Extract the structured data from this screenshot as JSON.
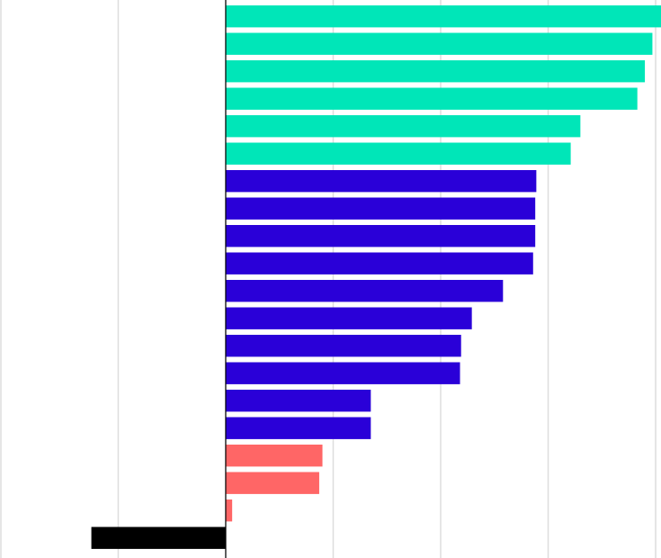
{
  "chart_data": {
    "type": "bar",
    "orientation": "horizontal",
    "xlim": [
      -210,
      405
    ],
    "gridline_values": [
      -210,
      -100,
      0,
      100,
      200,
      300,
      400
    ],
    "grid": true,
    "colors": {
      "teal": "#00E6B8",
      "blue": "#2A00D8",
      "red": "#FF6666",
      "black": "#000000",
      "grid": "#DDDDDD",
      "axis": "#000000"
    },
    "bars": [
      {
        "value": 405,
        "color": "teal"
      },
      {
        "value": 397,
        "color": "teal"
      },
      {
        "value": 390,
        "color": "teal"
      },
      {
        "value": 383,
        "color": "teal"
      },
      {
        "value": 330,
        "color": "teal"
      },
      {
        "value": 321,
        "color": "teal"
      },
      {
        "value": 289,
        "color": "blue"
      },
      {
        "value": 288,
        "color": "blue"
      },
      {
        "value": 288,
        "color": "blue"
      },
      {
        "value": 286,
        "color": "blue"
      },
      {
        "value": 258,
        "color": "blue"
      },
      {
        "value": 229,
        "color": "blue"
      },
      {
        "value": 219,
        "color": "blue"
      },
      {
        "value": 218,
        "color": "blue"
      },
      {
        "value": 135,
        "color": "blue"
      },
      {
        "value": 135,
        "color": "blue"
      },
      {
        "value": 90,
        "color": "red"
      },
      {
        "value": 87,
        "color": "red"
      },
      {
        "value": 6,
        "color": "red"
      },
      {
        "value": -125,
        "color": "black"
      }
    ]
  }
}
